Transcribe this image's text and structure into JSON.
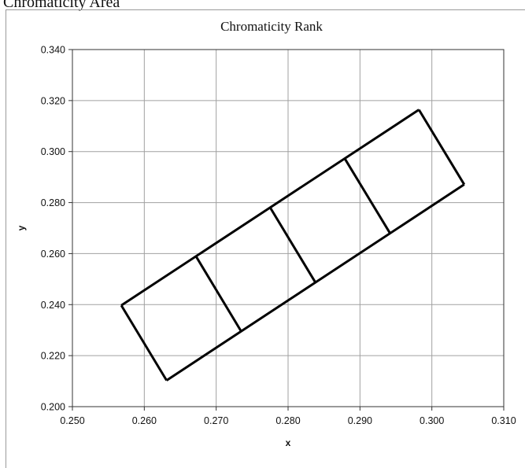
{
  "page": {
    "heading": "Chromaticity Area"
  },
  "chart_data": {
    "type": "line",
    "title": "Chromaticity Rank",
    "xlabel": "x",
    "ylabel": "y",
    "xlim": [
      0.25,
      0.31
    ],
    "ylim": [
      0.2,
      0.34
    ],
    "x_ticks": [
      0.25,
      0.26,
      0.27,
      0.28,
      0.29,
      0.3,
      0.31
    ],
    "y_ticks": [
      0.2,
      0.22,
      0.24,
      0.26,
      0.28,
      0.3,
      0.32,
      0.34
    ],
    "x_tick_labels": [
      "0.250",
      "0.260",
      "0.270",
      "0.280",
      "0.290",
      "0.300",
      "0.310"
    ],
    "y_tick_labels": [
      "0.200",
      "0.220",
      "0.240",
      "0.260",
      "0.280",
      "0.300",
      "0.320",
      "0.340"
    ],
    "grid": true,
    "legend": "none",
    "line_color": "#000000",
    "segments": [
      {
        "x": [
          0.2568,
          0.2982
        ],
        "y": [
          0.2397,
          0.3164
        ]
      },
      {
        "x": [
          0.2631,
          0.3045
        ],
        "y": [
          0.2103,
          0.2871
        ]
      },
      {
        "x": [
          0.2568,
          0.2631
        ],
        "y": [
          0.2397,
          0.2103
        ]
      },
      {
        "x": [
          0.2982,
          0.3045
        ],
        "y": [
          0.3164,
          0.2871
        ]
      },
      {
        "x": [
          0.2672,
          0.2735
        ],
        "y": [
          0.2589,
          0.2294
        ]
      },
      {
        "x": [
          0.2775,
          0.2838
        ],
        "y": [
          0.2781,
          0.2487
        ]
      },
      {
        "x": [
          0.2879,
          0.2942
        ],
        "y": [
          0.2972,
          0.2679
        ]
      }
    ]
  }
}
